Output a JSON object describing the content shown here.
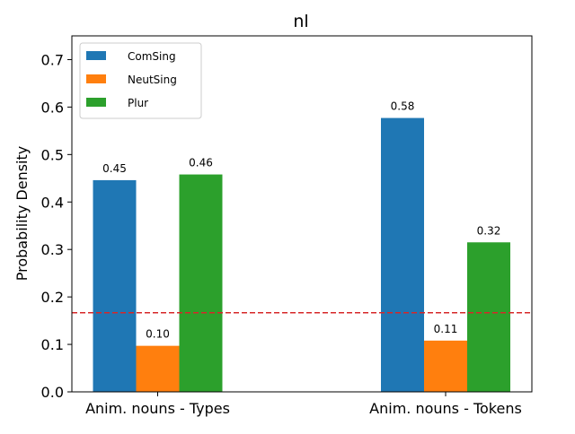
{
  "chart_data": {
    "type": "bar",
    "title": "nl",
    "xlabel": "",
    "ylabel": "Probability Density",
    "ylim": [
      0,
      0.75
    ],
    "yticks": [
      0.0,
      0.1,
      0.2,
      0.3,
      0.4,
      0.5,
      0.6,
      0.7
    ],
    "ytick_labels": [
      "0.0",
      "0.1",
      "0.2",
      "0.3",
      "0.4",
      "0.5",
      "0.6",
      "0.7"
    ],
    "categories": [
      "Anim. nouns - Types",
      "Anim. nouns - Tokens"
    ],
    "series": [
      {
        "name": "ComSing",
        "color": "#1f77b4",
        "values": [
          0.446,
          0.577
        ],
        "labels": [
          "0.45",
          "0.58"
        ]
      },
      {
        "name": "NeutSing",
        "color": "#ff7f0e",
        "values": [
          0.097,
          0.108
        ],
        "labels": [
          "0.10",
          "0.11"
        ]
      },
      {
        "name": "Plur",
        "color": "#2ca02c",
        "values": [
          0.458,
          0.315
        ],
        "labels": [
          "0.46",
          "0.32"
        ]
      }
    ],
    "reference_line": {
      "y": 0.1667,
      "color": "#d62728",
      "style": "dashed"
    },
    "legend_position": "top-left",
    "grid": false
  }
}
